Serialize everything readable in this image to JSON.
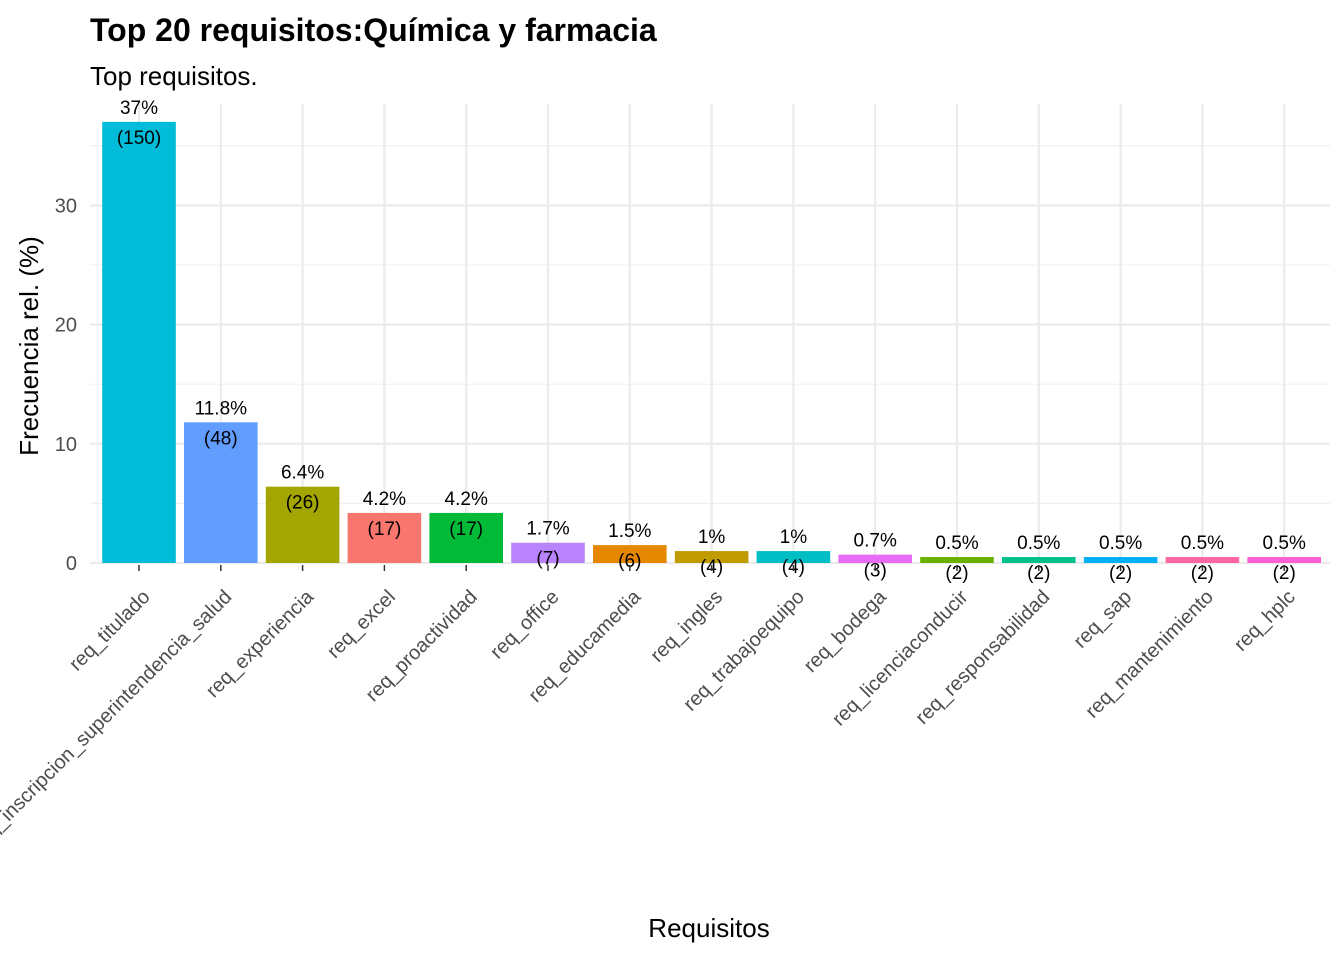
{
  "chart_data": {
    "type": "bar",
    "title": "Top 20 requisitos:Química y farmacia",
    "subtitle": "Top requisitos.",
    "xlabel": "Requisitos",
    "ylabel": "Frecuencia rel. (%)",
    "ylim": [
      0,
      38.5
    ],
    "yticks": [
      "0",
      "10",
      "20",
      "30"
    ],
    "grid": true,
    "legend": "none",
    "categories": [
      "req_titulado",
      "req_inscripcion_superintendencia_salud",
      "req_experiencia",
      "req_excel",
      "req_proactividad",
      "req_office",
      "req_educamedia",
      "req_ingles",
      "req_trabajoequipo",
      "req_bodega",
      "req_licenciaconducir",
      "req_responsabilidad",
      "req_sap",
      "req_mantenimiento",
      "req_hplc"
    ],
    "values": [
      37,
      11.8,
      6.4,
      4.2,
      4.2,
      1.7,
      1.5,
      1,
      1,
      0.7,
      0.5,
      0.5,
      0.5,
      0.5,
      0.5
    ],
    "pct_labels": [
      "37%",
      "11.8%",
      "6.4%",
      "4.2%",
      "4.2%",
      "1.7%",
      "1.5%",
      "1%",
      "1%",
      "0.7%",
      "0.5%",
      "0.5%",
      "0.5%",
      "0.5%",
      "0.5%"
    ],
    "counts": [
      "(150)",
      "(48)",
      "(26)",
      "(17)",
      "(17)",
      "(7)",
      "(6)",
      "(4)",
      "(4)",
      "(3)",
      "(2)",
      "(2)",
      "(2)",
      "(2)",
      "(2)"
    ],
    "colors": [
      "#00BCD8",
      "#619CFF",
      "#A3A500",
      "#F8766D",
      "#00BA38",
      "#B983FF",
      "#E58700",
      "#C09B00",
      "#00BFC4",
      "#E76BF3",
      "#6BB100",
      "#00C08B",
      "#00B0F6",
      "#FF67A4",
      "#FD61D1"
    ]
  }
}
